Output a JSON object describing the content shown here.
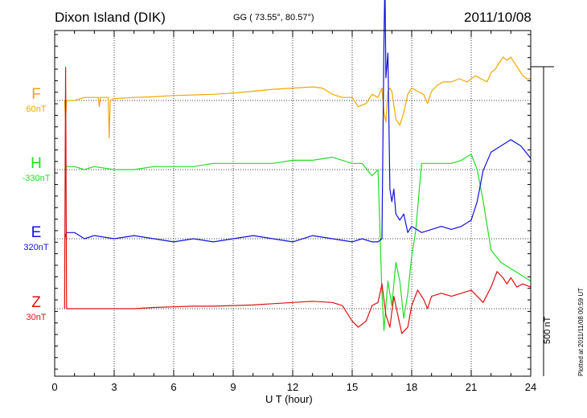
{
  "header": {
    "station": "Dixon Island (DIK)",
    "coords": "GG ( 73.55°,  80.57°)",
    "date": "2011/10/08"
  },
  "chart_data": {
    "type": "line",
    "xlabel": "U T (hour)",
    "xlim": [
      0,
      24
    ],
    "xticks": [
      "0",
      "3",
      "6",
      "9",
      "12",
      "15",
      "18",
      "21",
      "24"
    ],
    "y_units": "nT",
    "grid": true,
    "scale_bar": {
      "label": "500 nT",
      "value": 500
    },
    "series": [
      {
        "name": "F",
        "baseline": "60nT",
        "baseline_value": 60,
        "color": "#f0a800",
        "x": [
          0.5,
          0.55,
          0.6,
          1,
          1.5,
          2,
          2.2,
          2.25,
          2.3,
          2.5,
          2.7,
          2.75,
          2.8,
          3,
          4,
          5,
          6,
          7,
          8,
          9,
          10,
          11,
          12,
          13,
          13.5,
          14,
          14.5,
          15,
          15.3,
          15.7,
          16,
          16.3,
          16.5,
          16.6,
          16.7,
          16.8,
          16.9,
          17,
          17.2,
          17.4,
          17.6,
          17.8,
          18,
          18.3,
          18.6,
          18.8,
          19,
          19.3,
          19.6,
          20,
          20.4,
          20.8,
          21.2,
          21.5,
          21.8,
          22,
          22.2,
          22.4,
          22.6,
          22.8,
          23,
          23.2,
          23.4,
          23.6,
          23.8,
          24
        ],
        "y": [
          0,
          -30,
          0,
          0,
          5,
          5,
          5,
          -10,
          5,
          5,
          5,
          -60,
          0,
          3,
          5,
          6,
          8,
          9,
          10,
          12,
          15,
          18,
          20,
          22,
          20,
          10,
          5,
          5,
          -10,
          -5,
          10,
          5,
          20,
          -20,
          -35,
          15,
          20,
          15,
          -30,
          -40,
          -20,
          10,
          20,
          15,
          10,
          -5,
          15,
          25,
          30,
          30,
          35,
          30,
          40,
          35,
          30,
          45,
          50,
          60,
          70,
          65,
          70,
          60,
          50,
          40,
          35,
          35
        ]
      },
      {
        "name": "H",
        "baseline": "-330nT",
        "baseline_value": -330,
        "color": "#22dd22",
        "x": [
          0.5,
          0.6,
          1,
          1.5,
          2,
          3,
          4,
          5,
          6,
          7,
          8,
          9,
          10,
          11,
          12,
          13,
          14,
          14.5,
          15,
          15.5,
          16,
          16.3,
          16.5,
          16.6,
          16.8,
          17,
          17.2,
          17.4,
          17.6,
          17.8,
          18,
          18.2,
          18.5,
          19,
          19.5,
          20,
          20.5,
          21,
          21.3,
          21.6,
          22,
          22.5,
          23,
          23.5,
          24
        ],
        "y": [
          0,
          5,
          5,
          0,
          5,
          0,
          0,
          5,
          5,
          5,
          10,
          10,
          10,
          10,
          15,
          15,
          20,
          15,
          10,
          10,
          -10,
          0,
          -200,
          -260,
          -180,
          -220,
          -150,
          -180,
          -240,
          -200,
          -140,
          -100,
          10,
          10,
          10,
          10,
          15,
          25,
          0,
          -50,
          -130,
          -150,
          -160,
          -170,
          -180
        ]
      },
      {
        "name": "E",
        "baseline": "320nT",
        "baseline_value": 320,
        "color": "#1010dd",
        "x": [
          0.5,
          0.6,
          1,
          1.5,
          2,
          3,
          4,
          5,
          6,
          7,
          8,
          9,
          10,
          11,
          12,
          13,
          14,
          15,
          15.5,
          16,
          16.3,
          16.5,
          16.6,
          16.65,
          16.7,
          16.8,
          16.9,
          17,
          17.1,
          17.2,
          17.4,
          17.6,
          17.8,
          18,
          18.5,
          19,
          19.5,
          20,
          20.5,
          21,
          21.3,
          21.6,
          22,
          22.5,
          23,
          23.5,
          24
        ],
        "y": [
          0,
          10,
          10,
          0,
          5,
          0,
          5,
          0,
          -5,
          0,
          -5,
          0,
          5,
          0,
          -5,
          5,
          0,
          -5,
          0,
          -5,
          -5,
          0,
          320,
          420,
          260,
          300,
          80,
          60,
          80,
          40,
          30,
          40,
          10,
          20,
          10,
          15,
          20,
          15,
          20,
          30,
          60,
          110,
          140,
          150,
          160,
          150,
          130
        ]
      },
      {
        "name": "Z",
        "baseline": "30nT",
        "baseline_value": 30,
        "color": "#dd1010",
        "x": [
          0.5,
          0.55,
          0.6,
          1,
          2,
          3,
          4,
          5,
          6,
          7,
          8,
          9,
          10,
          11,
          12,
          13,
          14,
          14.5,
          15,
          15.3,
          15.7,
          16,
          16.3,
          16.5,
          16.7,
          16.9,
          17.1,
          17.3,
          17.5,
          17.8,
          18,
          18.3,
          18.6,
          18.8,
          19,
          19.5,
          20,
          20.5,
          21,
          21.3,
          21.6,
          22,
          22.3,
          22.6,
          22.8,
          23,
          23.3,
          23.6,
          24
        ],
        "y": [
          0,
          390,
          0,
          0,
          0,
          0,
          0,
          2,
          3,
          4,
          4,
          5,
          6,
          8,
          10,
          12,
          10,
          5,
          -20,
          -30,
          -20,
          5,
          10,
          40,
          -10,
          -30,
          20,
          -10,
          -40,
          -30,
          5,
          30,
          15,
          0,
          20,
          25,
          20,
          25,
          30,
          20,
          10,
          35,
          60,
          50,
          40,
          50,
          35,
          40,
          35
        ]
      }
    ]
  },
  "footer": {
    "plotted_note": "Plotted at 2011/11/08 00:59 UT"
  }
}
